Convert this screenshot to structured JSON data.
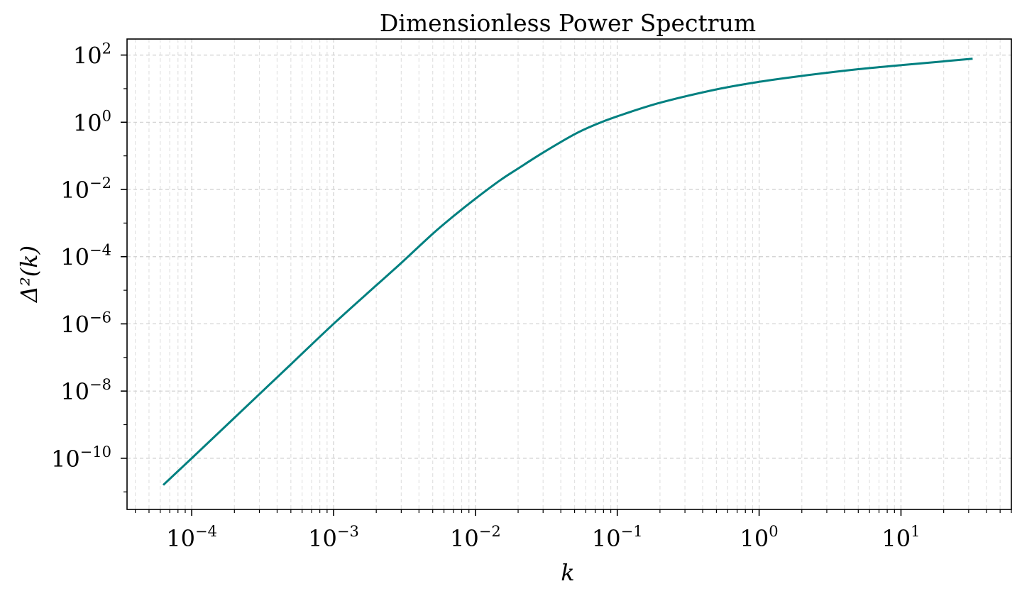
{
  "chart_data": {
    "type": "line",
    "title": "Dimensionless Power Spectrum",
    "xlabel": "k",
    "ylabel": "Δ²(k)",
    "xscale": "log",
    "yscale": "log",
    "xlim": [
      3.5e-05,
      60
    ],
    "ylim": [
      3e-12,
      300
    ],
    "grid": true,
    "grid_style": "dashed",
    "line_color": "#008080",
    "x_ticks": [
      {
        "base": "10",
        "exp": "−4",
        "value": 0.0001
      },
      {
        "base": "10",
        "exp": "−3",
        "value": 0.001
      },
      {
        "base": "10",
        "exp": "−2",
        "value": 0.01
      },
      {
        "base": "10",
        "exp": "−1",
        "value": 0.1
      },
      {
        "base": "10",
        "exp": "0",
        "value": 1
      },
      {
        "base": "10",
        "exp": "1",
        "value": 10
      }
    ],
    "y_ticks": [
      {
        "base": "10",
        "exp": "2",
        "value": 100
      },
      {
        "base": "10",
        "exp": "0",
        "value": 1
      },
      {
        "base": "10",
        "exp": "−2",
        "value": 0.01
      },
      {
        "base": "10",
        "exp": "−4",
        "value": 0.0001
      },
      {
        "base": "10",
        "exp": "−6",
        "value": 1e-06
      },
      {
        "base": "10",
        "exp": "−8",
        "value": 1e-08
      },
      {
        "base": "10",
        "exp": "−10",
        "value": 1e-10
      }
    ],
    "series": [
      {
        "x": [
          6.3e-05,
          0.0001,
          0.0002,
          0.0005,
          0.001,
          0.002,
          0.003,
          0.005,
          0.007,
          0.01,
          0.015,
          0.02,
          0.03,
          0.05,
          0.07,
          0.1,
          0.2,
          0.5,
          1,
          2,
          5,
          10,
          20,
          32
        ],
        "y": [
          1.6e-11,
          1e-10,
          1.6e-09,
          6.25e-08,
          1e-06,
          1.4e-05,
          6.5e-05,
          0.00048,
          0.0016,
          0.0053,
          0.019,
          0.042,
          0.125,
          0.44,
          0.85,
          1.5,
          3.8,
          9.5,
          16,
          24,
          38,
          50,
          65,
          78
        ]
      }
    ]
  }
}
